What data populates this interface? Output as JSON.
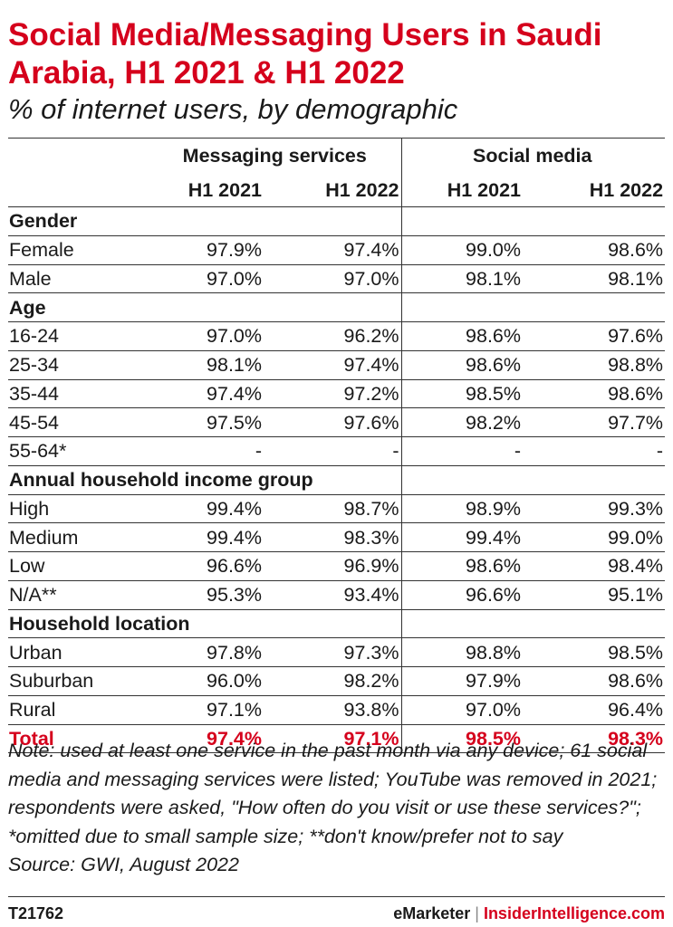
{
  "title": "Social Media/Messaging Users in Saudi Arabia, H1 2021 & H1 2022",
  "subtitle": "% of internet users, by demographic",
  "chart_data": {
    "type": "table",
    "groups": [
      "Messaging services",
      "Social media"
    ],
    "columns": [
      "H1 2021",
      "H1 2022",
      "H1 2021",
      "H1 2022"
    ],
    "sections": [
      {
        "name": "Gender",
        "rows": [
          {
            "label": "Female",
            "values": [
              "97.9%",
              "97.4%",
              "99.0%",
              "98.6%"
            ]
          },
          {
            "label": "Male",
            "values": [
              "97.0%",
              "97.0%",
              "98.1%",
              "98.1%"
            ]
          }
        ]
      },
      {
        "name": "Age",
        "rows": [
          {
            "label": "16-24",
            "values": [
              "97.0%",
              "96.2%",
              "98.6%",
              "97.6%"
            ]
          },
          {
            "label": "25-34",
            "values": [
              "98.1%",
              "97.4%",
              "98.6%",
              "98.8%"
            ]
          },
          {
            "label": "35-44",
            "values": [
              "97.4%",
              "97.2%",
              "98.5%",
              "98.6%"
            ]
          },
          {
            "label": "45-54",
            "values": [
              "97.5%",
              "97.6%",
              "98.2%",
              "97.7%"
            ]
          },
          {
            "label": "55-64*",
            "values": [
              "-",
              "-",
              "-",
              "-"
            ]
          }
        ]
      },
      {
        "name": "Annual household income group",
        "rows": [
          {
            "label": "High",
            "values": [
              "99.4%",
              "98.7%",
              "98.9%",
              "99.3%"
            ]
          },
          {
            "label": "Medium",
            "values": [
              "99.4%",
              "98.3%",
              "99.4%",
              "99.0%"
            ]
          },
          {
            "label": "Low",
            "values": [
              "96.6%",
              "96.9%",
              "98.6%",
              "98.4%"
            ]
          },
          {
            "label": "N/A**",
            "values": [
              "95.3%",
              "93.4%",
              "96.6%",
              "95.1%"
            ]
          }
        ]
      },
      {
        "name": "Household location",
        "rows": [
          {
            "label": "Urban",
            "values": [
              "97.8%",
              "97.3%",
              "98.8%",
              "98.5%"
            ]
          },
          {
            "label": "Suburban",
            "values": [
              "96.0%",
              "98.2%",
              "97.9%",
              "98.6%"
            ]
          },
          {
            "label": "Rural",
            "values": [
              "97.1%",
              "93.8%",
              "97.0%",
              "96.4%"
            ]
          }
        ]
      }
    ],
    "total": {
      "label": "Total",
      "values": [
        "97.4%",
        "97.1%",
        "98.5%",
        "98.3%"
      ]
    }
  },
  "note": "Note: used at least one service in the past month via any device; 61 social media and messaging services were listed; YouTube was removed in 2021; respondents were asked, \"How often do you visit or use these services?\"; *omitted due to small sample size; **don't know/prefer not to say",
  "source": "Source: GWI, August 2022",
  "footer": {
    "chart_id": "T21762",
    "brand": "eMarketer",
    "separator": "|",
    "brand2": "InsiderIntelligence.com"
  },
  "colors": {
    "accent": "#d5001c",
    "text": "#1a1a1a",
    "rule": "#333333"
  }
}
